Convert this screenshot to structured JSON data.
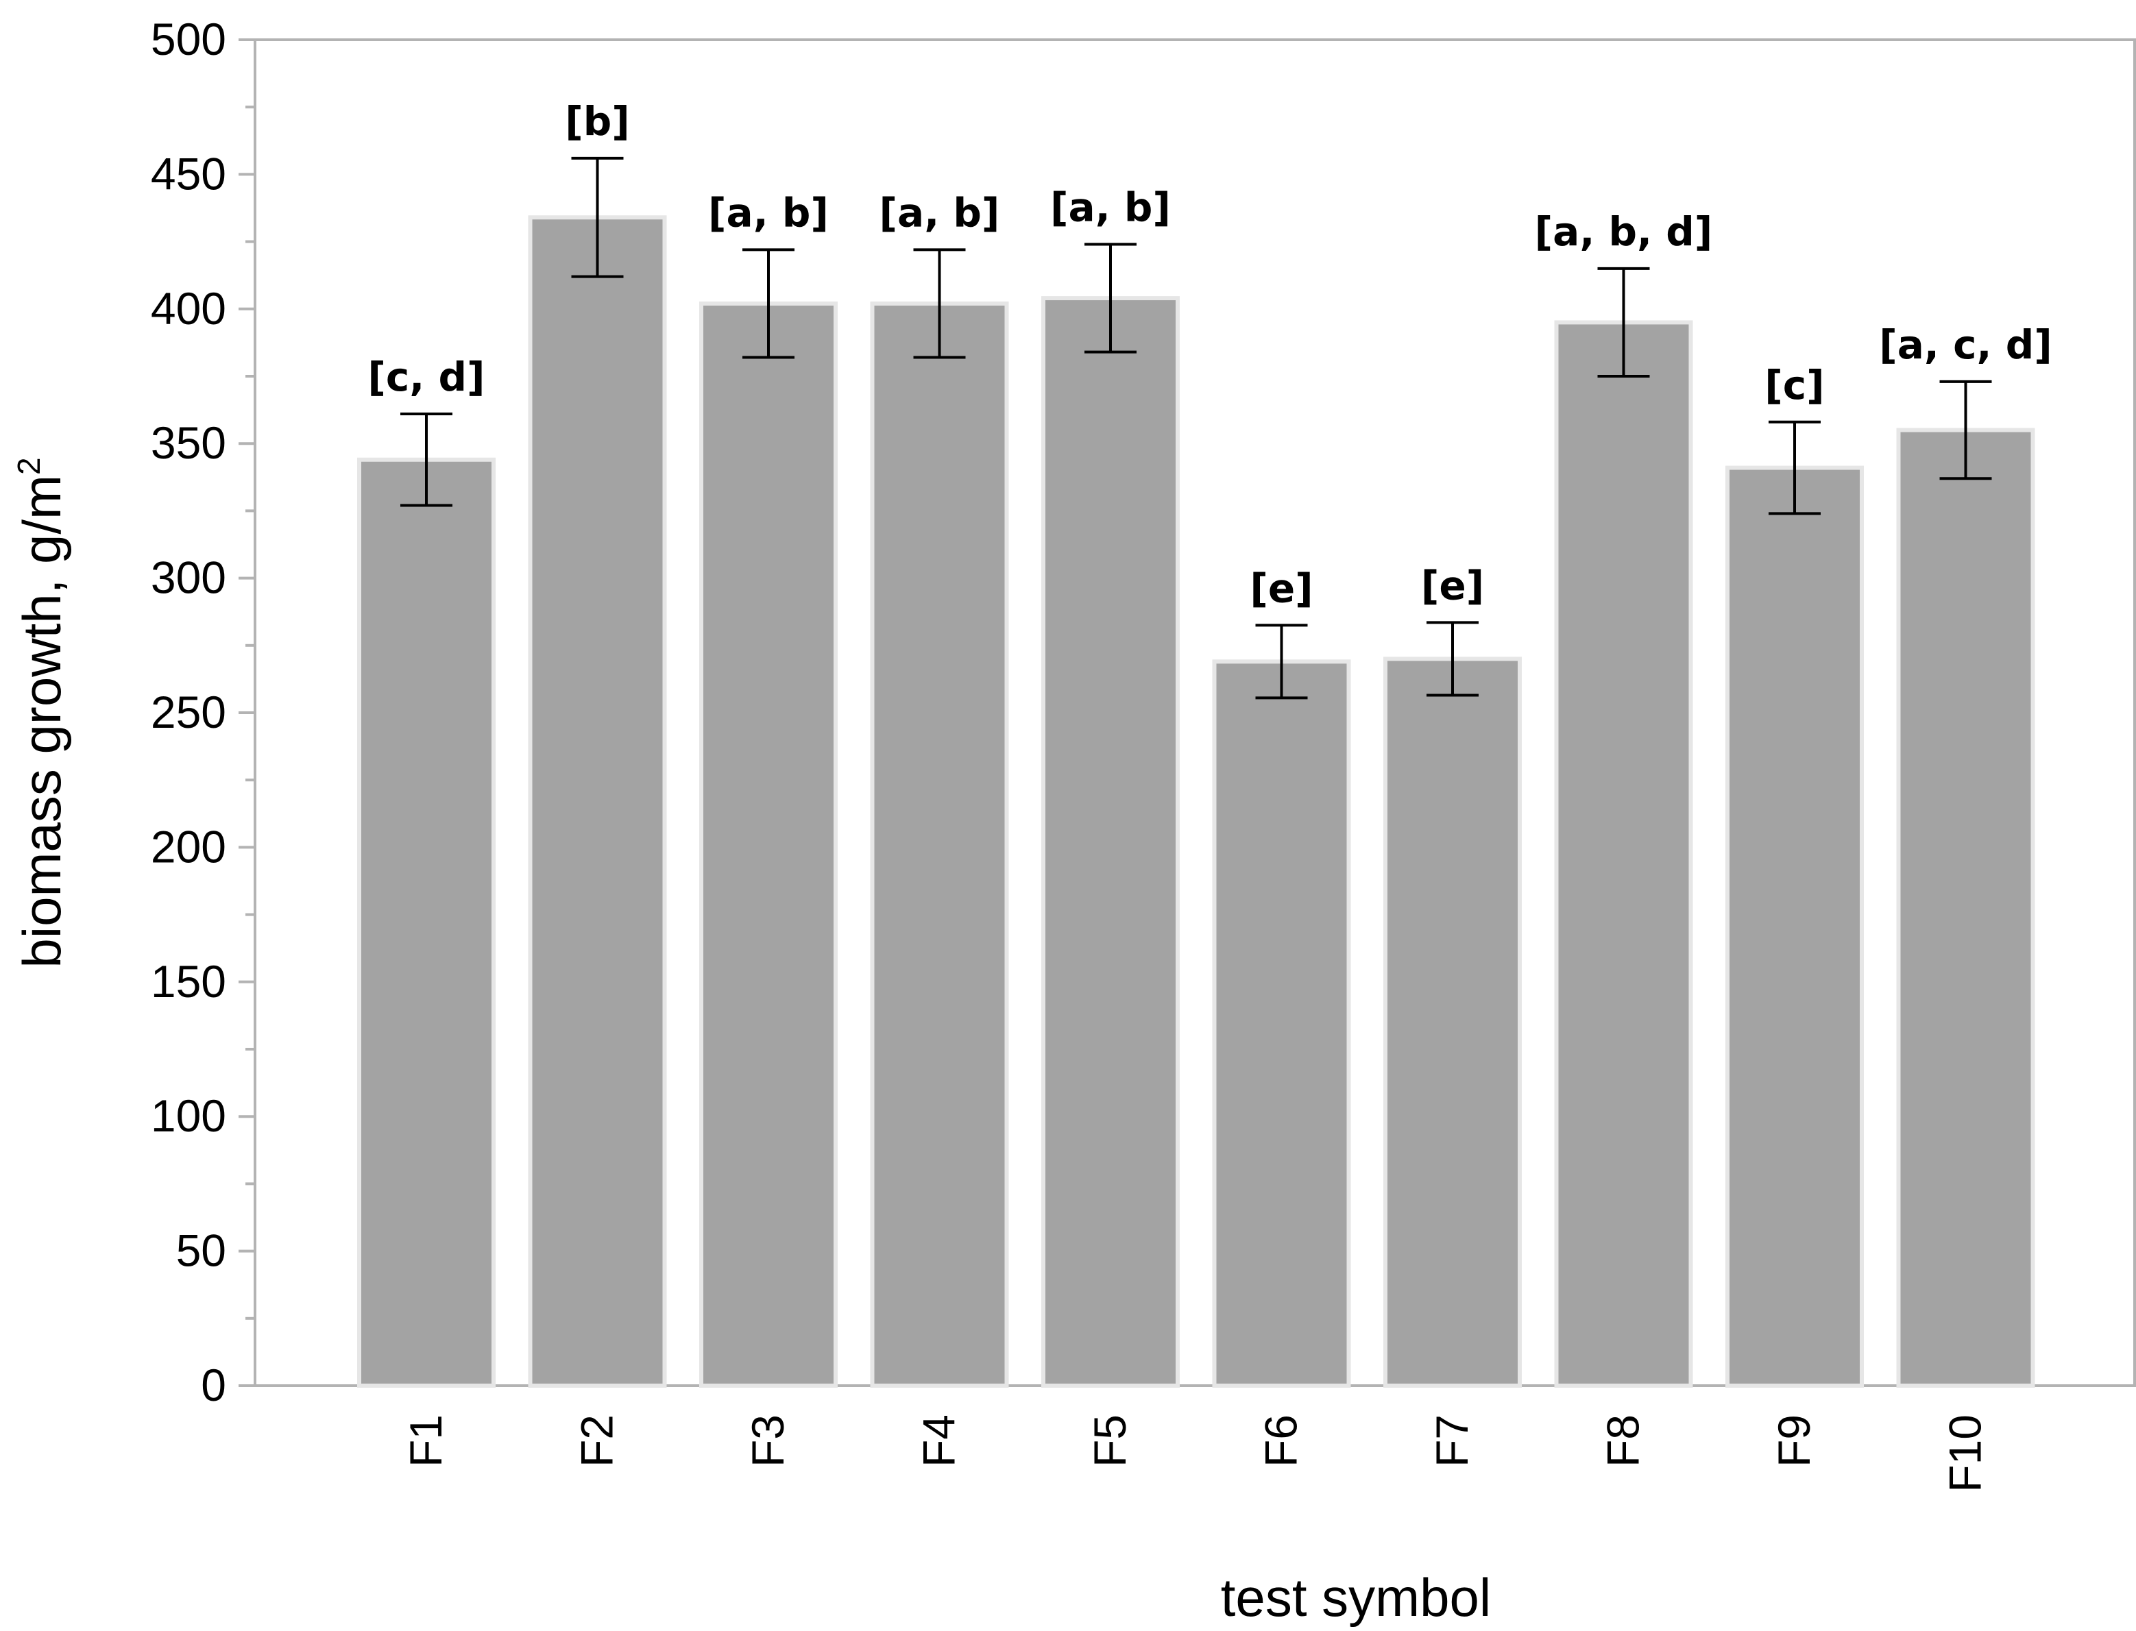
{
  "chart_data": {
    "type": "bar",
    "categories": [
      "F1",
      "F2",
      "F3",
      "F4",
      "F5",
      "F6",
      "F7",
      "F8",
      "F9",
      "F10"
    ],
    "series": [
      {
        "values": [
          344,
          434,
          402,
          402,
          404,
          269,
          270,
          395,
          341,
          355
        ],
        "errors": [
          17,
          22,
          20,
          20,
          20,
          13.5,
          13.5,
          20,
          17,
          18
        ],
        "labels": [
          "[c, d]",
          "[b]",
          "[a, b]",
          "[a, b]",
          "[a, b]",
          "[e]",
          "[e]",
          "[a, b, d]",
          "[c]",
          "[a, c, d]"
        ]
      }
    ],
    "xlabel": "test symbol",
    "ylabel": "biomass growth, g/m",
    "ylabel_superscript": "2",
    "ylim": [
      0,
      500
    ],
    "yticks": [
      "0",
      "50",
      "100",
      "150",
      "200",
      "250",
      "300",
      "350",
      "400",
      "450",
      "500"
    ],
    "grid": false,
    "colors": {
      "bar": "#a3a3a3",
      "bar_edge": "#e6e6e6",
      "error_bar": "#000000",
      "axis": "#b3b3b3"
    }
  }
}
